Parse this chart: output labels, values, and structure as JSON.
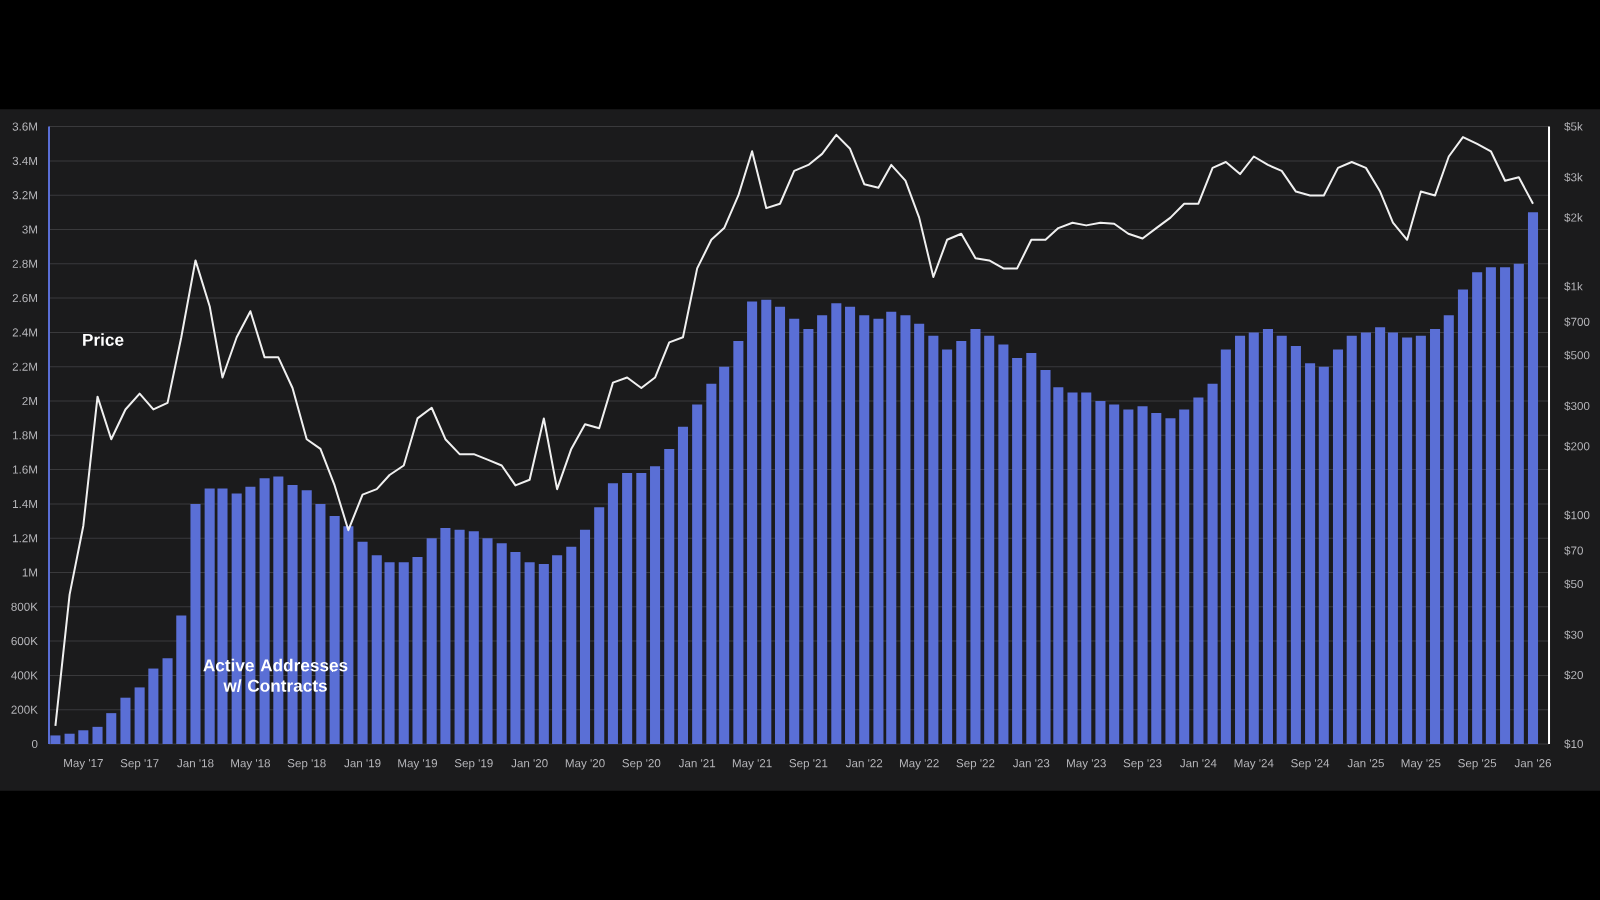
{
  "chart_data": {
    "type": "bar",
    "x": [
      "2017-03",
      "2017-04",
      "2017-05",
      "2017-06",
      "2017-07",
      "2017-08",
      "2017-09",
      "2017-10",
      "2017-11",
      "2017-12",
      "2018-01",
      "2018-02",
      "2018-03",
      "2018-04",
      "2018-05",
      "2018-06",
      "2018-07",
      "2018-08",
      "2018-09",
      "2018-10",
      "2018-11",
      "2018-12",
      "2019-01",
      "2019-02",
      "2019-03",
      "2019-04",
      "2019-05",
      "2019-06",
      "2019-07",
      "2019-08",
      "2019-09",
      "2019-10",
      "2019-11",
      "2019-12",
      "2020-01",
      "2020-02",
      "2020-03",
      "2020-04",
      "2020-05",
      "2020-06",
      "2020-07",
      "2020-08",
      "2020-09",
      "2020-10",
      "2020-11",
      "2020-12",
      "2021-01",
      "2021-02",
      "2021-03",
      "2021-04",
      "2021-05",
      "2021-06",
      "2021-07",
      "2021-08",
      "2021-09",
      "2021-10",
      "2021-11",
      "2021-12",
      "2022-01",
      "2022-02",
      "2022-03",
      "2022-04",
      "2022-05",
      "2022-06",
      "2022-07",
      "2022-08",
      "2022-09",
      "2022-10",
      "2022-11",
      "2022-12",
      "2023-01",
      "2023-02",
      "2023-03",
      "2023-04",
      "2023-05",
      "2023-06",
      "2023-07",
      "2023-08",
      "2023-09",
      "2023-10",
      "2023-11",
      "2023-12",
      "2024-01",
      "2024-02",
      "2024-03",
      "2024-04",
      "2024-05",
      "2024-06",
      "2024-07",
      "2024-08",
      "2024-09",
      "2024-10",
      "2024-11",
      "2024-12",
      "2025-01",
      "2025-02",
      "2025-03",
      "2025-04",
      "2025-05",
      "2025-06",
      "2025-07",
      "2025-08",
      "2025-09",
      "2025-10",
      "2025-11",
      "2025-12",
      "2026-01"
    ],
    "series": [
      {
        "name": "Active Addresses w/ Contracts",
        "color": "#5a6fd6",
        "values": [
          50000,
          60000,
          80000,
          100000,
          180000,
          270000,
          330000,
          440000,
          500000,
          750000,
          1400000,
          1490000,
          1490000,
          1460000,
          1500000,
          1550000,
          1560000,
          1510000,
          1480000,
          1400000,
          1330000,
          1270000,
          1180000,
          1100000,
          1060000,
          1060000,
          1090000,
          1200000,
          1260000,
          1250000,
          1240000,
          1200000,
          1170000,
          1120000,
          1060000,
          1050000,
          1100000,
          1150000,
          1250000,
          1380000,
          1520000,
          1580000,
          1580000,
          1620000,
          1720000,
          1850000,
          1980000,
          2100000,
          2200000,
          2350000,
          2580000,
          2590000,
          2550000,
          2480000,
          2420000,
          2500000,
          2570000,
          2550000,
          2500000,
          2480000,
          2520000,
          2500000,
          2450000,
          2380000,
          2300000,
          2350000,
          2420000,
          2380000,
          2330000,
          2250000,
          2280000,
          2180000,
          2080000,
          2050000,
          2050000,
          2000000,
          1980000,
          1950000,
          1970000,
          1930000,
          1900000,
          1950000,
          2020000,
          2100000,
          2300000,
          2380000,
          2400000,
          2420000,
          2380000,
          2320000,
          2220000,
          2200000,
          2300000,
          2380000,
          2400000,
          2430000,
          2400000,
          2370000,
          2380000,
          2420000,
          2500000,
          2650000,
          2750000,
          2780000,
          2780000,
          2800000,
          3100000
        ]
      },
      {
        "name": "Price",
        "type": "line",
        "axis": "y2",
        "color": "#f0f0f0",
        "values": [
          12,
          45,
          90,
          330,
          215,
          290,
          340,
          290,
          310,
          600,
          1300,
          820,
          400,
          600,
          780,
          490,
          490,
          360,
          215,
          195,
          135,
          86,
          123,
          130,
          150,
          165,
          265,
          295,
          215,
          185,
          185,
          175,
          165,
          135,
          143,
          265,
          130,
          195,
          250,
          240,
          380,
          400,
          360,
          400,
          570,
          600,
          1200,
          1600,
          1800,
          2500,
          3900,
          2200,
          2300,
          3200,
          3400,
          3800,
          4600,
          4000,
          2800,
          2700,
          3400,
          2900,
          2000,
          1100,
          1600,
          1700,
          1330,
          1300,
          1200,
          1200,
          1600,
          1600,
          1800,
          1900,
          1850,
          1900,
          1880,
          1700,
          1620,
          1800,
          2000,
          2300,
          2300,
          3300,
          3500,
          3100,
          3700,
          3400,
          3200,
          2600,
          2500,
          2500,
          3300,
          3500,
          3300,
          2600,
          1900,
          1600,
          2600,
          2500,
          3700,
          4500,
          4200,
          3900,
          2900,
          3000,
          2300
        ]
      }
    ],
    "xlim": [
      "2017-02-15",
      "2026-02-05"
    ],
    "xticks": [
      {
        "value": "2017-05",
        "label": "May '17"
      },
      {
        "value": "2017-09",
        "label": "Sep '17"
      },
      {
        "value": "2018-01",
        "label": "Jan '18"
      },
      {
        "value": "2018-05",
        "label": "May '18"
      },
      {
        "value": "2018-09",
        "label": "Sep '18"
      },
      {
        "value": "2019-01",
        "label": "Jan '19"
      },
      {
        "value": "2019-05",
        "label": "May '19"
      },
      {
        "value": "2019-09",
        "label": "Sep '19"
      },
      {
        "value": "2020-01",
        "label": "Jan '20"
      },
      {
        "value": "2020-05",
        "label": "May '20"
      },
      {
        "value": "2020-09",
        "label": "Sep '20"
      },
      {
        "value": "2021-01",
        "label": "Jan '21"
      },
      {
        "value": "2021-05",
        "label": "May '21"
      },
      {
        "value": "2021-09",
        "label": "Sep '21"
      },
      {
        "value": "2022-01",
        "label": "Jan '22"
      },
      {
        "value": "2022-05",
        "label": "May '22"
      },
      {
        "value": "2022-09",
        "label": "Sep '22"
      },
      {
        "value": "2023-01",
        "label": "Jan '23"
      },
      {
        "value": "2023-05",
        "label": "May '23"
      },
      {
        "value": "2023-09",
        "label": "Sep '23"
      },
      {
        "value": "2024-01",
        "label": "Jan '24"
      },
      {
        "value": "2024-05",
        "label": "May '24"
      },
      {
        "value": "2024-09",
        "label": "Sep '24"
      },
      {
        "value": "2025-01",
        "label": "Jan '25"
      },
      {
        "value": "2025-05",
        "label": "May '25"
      },
      {
        "value": "2025-09",
        "label": "Sep '25"
      },
      {
        "value": "2026-01",
        "label": "Jan '26"
      }
    ],
    "ylim": [
      0,
      3600000
    ],
    "yticks": [
      0,
      {
        "value": 200000,
        "label": "200K"
      },
      {
        "value": 400000,
        "label": "400K"
      },
      {
        "value": 600000,
        "label": "600K"
      },
      {
        "value": 800000,
        "label": "800K"
      },
      {
        "value": 1000000,
        "label": "1M"
      },
      {
        "value": 1200000,
        "label": "1.2M"
      },
      {
        "value": 1400000,
        "label": "1.4M"
      },
      {
        "value": 1600000,
        "label": "1.6M"
      },
      {
        "value": 1800000,
        "label": "1.8M"
      },
      {
        "value": 2000000,
        "label": "2M"
      },
      {
        "value": 2200000,
        "label": "2.2M"
      },
      {
        "value": 2400000,
        "label": "2.4M"
      },
      {
        "value": 2600000,
        "label": "2.6M"
      },
      {
        "value": 2800000,
        "label": "2.8M"
      },
      {
        "value": 3000000,
        "label": "3M"
      },
      {
        "value": 3200000,
        "label": "3.2M"
      },
      {
        "value": 3400000,
        "label": "3.4M"
      },
      {
        "value": 3600000,
        "label": "3.6M"
      }
    ],
    "y2lim": [
      10,
      5000
    ],
    "y2ticks": [
      {
        "value": 10,
        "label": "$10"
      },
      {
        "value": 20,
        "label": "$20"
      },
      {
        "value": 30,
        "label": "$30"
      },
      {
        "value": 50,
        "label": "$50"
      },
      {
        "value": 70,
        "label": "$70"
      },
      {
        "value": 100,
        "label": "$100"
      },
      {
        "value": 200,
        "label": "$200"
      },
      {
        "value": 300,
        "label": "$300"
      },
      {
        "value": 500,
        "label": "$500"
      },
      {
        "value": 700,
        "label": "$700"
      },
      {
        "value": 1000,
        "label": "$1k"
      },
      {
        "value": 2000,
        "label": "$2k"
      },
      {
        "value": 3000,
        "label": "$3k"
      },
      {
        "value": 5000,
        "label": "$5k"
      }
    ],
    "log": "y2",
    "grid": "y",
    "legend": false
  }
}
